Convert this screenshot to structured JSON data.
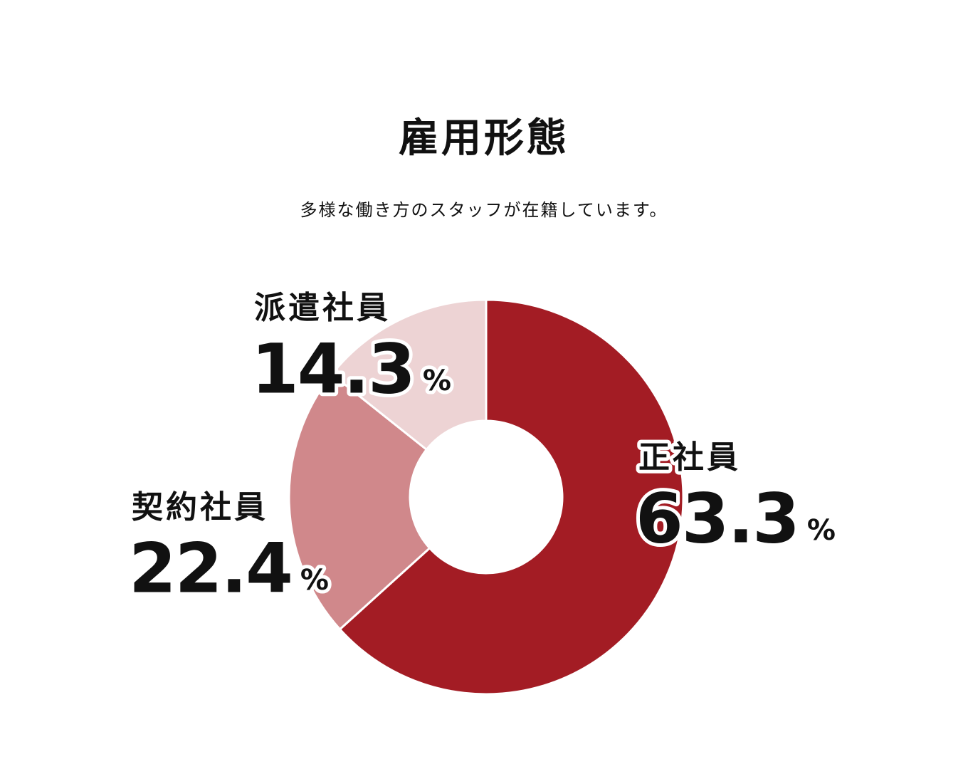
{
  "chart_data": {
    "type": "pie",
    "donut": true,
    "title": "雇用形態",
    "subtitle": "多様な働き方のスタッフが在籍しています。",
    "categories": [
      "正社員",
      "契約社員",
      "派遣社員"
    ],
    "values": [
      63.3,
      22.4,
      14.3
    ],
    "colors": [
      "#a31c24",
      "#d0888b",
      "#edd3d4"
    ],
    "unit": "%"
  }
}
